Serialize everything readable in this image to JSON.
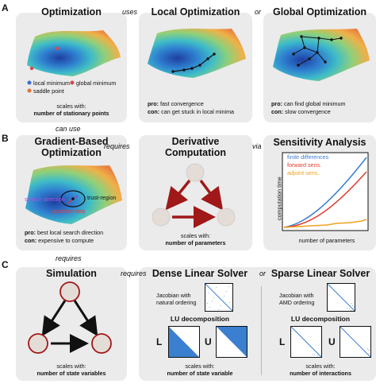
{
  "panel_labels": [
    "A",
    "B",
    "C"
  ],
  "row_a": {
    "optimization": {
      "title": "Optimization",
      "legend": [
        "local minimum",
        "global minimum",
        "saddle point"
      ],
      "scales_prefix": "scales with:",
      "scales_value": "number of stationary points"
    },
    "connector_1": "uses",
    "local": {
      "title": "Local Optimization",
      "pro_label": "pro:",
      "pro_text": "fast convergence",
      "con_label": "con:",
      "con_text": "can get stuck in local minima"
    },
    "connector_2": "or",
    "global": {
      "title": "Global Optimization",
      "pro_label": "pro:",
      "pro_text": "can find global minimum",
      "con_label": "con:",
      "con_text": "slow convergence"
    }
  },
  "row_b": {
    "can_use": "can use",
    "gradient": {
      "title_line1": "Gradient-Based",
      "title_line2": "Optimization",
      "search_direction": "search direction",
      "trust_region": "trust-region",
      "gradient_step": "gradient step",
      "pro_label": "pro:",
      "pro_text": "best local search direction",
      "con_label": "con:",
      "con_text": "expensive to compute"
    },
    "connector_1": "requires",
    "derivative": {
      "title_line1": "Derivative",
      "title_line2": "Computation",
      "scales_prefix": "scales with:",
      "scales_value": "number of parameters"
    },
    "connector_2": "via",
    "sensitivity": {
      "title": "Sensitivity Analysis",
      "legend": [
        {
          "name": "finite differences",
          "color": "#3a7fd0"
        },
        {
          "name": "forward sens.",
          "color": "#e03a2e"
        },
        {
          "name": "adjoint sens.",
          "color": "#f0a020"
        }
      ],
      "ylabel": "computation time",
      "xlabel": "number of parameters"
    }
  },
  "row_c": {
    "requires": "requires",
    "simulation": {
      "title": "Simulation",
      "scales_prefix": "scales with:",
      "scales_value": "number of state variables"
    },
    "connector_1": "requires",
    "dense": {
      "title": "Dense Linear Solver",
      "jacobian_line1": "Jacobian with",
      "jacobian_line2": "natural ordering",
      "lu_title": "LU decomposition",
      "l_label": "L",
      "u_label": "U",
      "scales_prefix": "scales with:",
      "scales_value": "number of state variable"
    },
    "connector_2": "or",
    "sparse": {
      "title": "Sparse Linear Solver",
      "jacobian_line1": "Jacobian with",
      "jacobian_line2": "AMD ordering",
      "lu_title": "LU decomposition",
      "l_label": "L",
      "u_label": "U",
      "scales_prefix": "scales with:",
      "scales_value": "number of interactions"
    }
  },
  "colors": {
    "panel": "#ebebeb",
    "arrow": "#a01818",
    "matrix_blue": "#3a7fd0",
    "node_fill": "#e4dcd6"
  }
}
